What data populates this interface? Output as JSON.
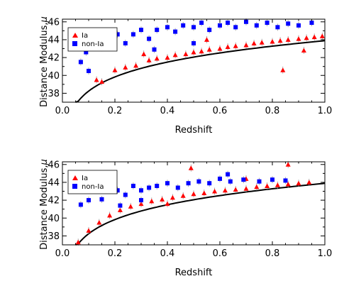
{
  "chart_data": [
    {
      "type": "scatter",
      "xlabel": "Redshift",
      "ylabel": "Distance Modulus,",
      "ylabel_symbol": "μ",
      "xlim": [
        0.0,
        1.0
      ],
      "ylim": [
        37,
        46.3
      ],
      "xticks": [
        "0.0",
        "0.2",
        "0.4",
        "0.6",
        "0.8",
        "1.0"
      ],
      "yticks": [
        "38",
        "40",
        "42",
        "44",
        "46"
      ],
      "legend": {
        "placement": "top-left",
        "entries": [
          "Ia",
          "non-Ia"
        ]
      },
      "series": [
        {
          "name": "Ia",
          "marker": "triangle",
          "color": "#ff0000",
          "points": [
            [
              0.13,
              39.5
            ],
            [
              0.15,
              39.3
            ],
            [
              0.2,
              40.6
            ],
            [
              0.24,
              40.9
            ],
            [
              0.28,
              41.1
            ],
            [
              0.33,
              41.7
            ],
            [
              0.36,
              41.9
            ],
            [
              0.4,
              42.0
            ],
            [
              0.43,
              42.3
            ],
            [
              0.47,
              42.4
            ],
            [
              0.5,
              42.6
            ],
            [
              0.53,
              42.7
            ],
            [
              0.56,
              42.9
            ],
            [
              0.6,
              43.0
            ],
            [
              0.63,
              43.2
            ],
            [
              0.66,
              43.3
            ],
            [
              0.7,
              43.4
            ],
            [
              0.73,
              43.6
            ],
            [
              0.76,
              43.7
            ],
            [
              0.8,
              43.8
            ],
            [
              0.83,
              43.9
            ],
            [
              0.86,
              44.0
            ],
            [
              0.9,
              44.1
            ],
            [
              0.93,
              44.2
            ],
            [
              0.96,
              44.3
            ],
            [
              0.99,
              44.4
            ],
            [
              0.84,
              40.6
            ],
            [
              0.92,
              42.8
            ],
            [
              0.55,
              44.0
            ],
            [
              0.31,
              42.4
            ]
          ]
        },
        {
          "name": "non-Ia",
          "marker": "square",
          "color": "#0000ff",
          "points": [
            [
              0.07,
              41.5
            ],
            [
              0.09,
              42.6
            ],
            [
              0.1,
              40.5
            ],
            [
              0.12,
              43.6
            ],
            [
              0.15,
              43.1
            ],
            [
              0.18,
              44.1
            ],
            [
              0.21,
              44.6
            ],
            [
              0.24,
              43.6
            ],
            [
              0.27,
              44.6
            ],
            [
              0.3,
              45.1
            ],
            [
              0.33,
              44.1
            ],
            [
              0.36,
              45.1
            ],
            [
              0.4,
              45.4
            ],
            [
              0.43,
              44.9
            ],
            [
              0.46,
              45.6
            ],
            [
              0.5,
              45.4
            ],
            [
              0.53,
              45.9
            ],
            [
              0.56,
              45.1
            ],
            [
              0.6,
              45.6
            ],
            [
              0.63,
              45.9
            ],
            [
              0.66,
              45.4
            ],
            [
              0.7,
              46.0
            ],
            [
              0.74,
              45.6
            ],
            [
              0.78,
              45.9
            ],
            [
              0.82,
              45.4
            ],
            [
              0.86,
              45.8
            ],
            [
              0.9,
              45.6
            ],
            [
              0.95,
              45.9
            ],
            [
              0.35,
              42.9
            ],
            [
              0.5,
              43.6
            ]
          ]
        }
      ],
      "model_curve": "distance-redshift relation (solid black line)"
    },
    {
      "type": "scatter",
      "xlabel": "Redshift",
      "ylabel": "Distance Modulus,",
      "ylabel_symbol": "μ",
      "xlim": [
        0.0,
        1.0
      ],
      "ylim": [
        37,
        46.3
      ],
      "xticks": [
        "0.0",
        "0.2",
        "0.4",
        "0.6",
        "0.8",
        "1.0"
      ],
      "yticks": [
        "38",
        "40",
        "42",
        "44",
        "46"
      ],
      "legend": {
        "placement": "top-left",
        "entries": [
          "Ia",
          "non-Ia"
        ]
      },
      "series": [
        {
          "name": "Ia",
          "marker": "triangle",
          "color": "#ff0000",
          "points": [
            [
              0.06,
              37.3
            ],
            [
              0.1,
              38.6
            ],
            [
              0.14,
              39.5
            ],
            [
              0.18,
              40.3
            ],
            [
              0.22,
              40.9
            ],
            [
              0.26,
              41.3
            ],
            [
              0.3,
              41.6
            ],
            [
              0.34,
              41.9
            ],
            [
              0.38,
              42.1
            ],
            [
              0.42,
              42.3
            ],
            [
              0.46,
              42.5
            ],
            [
              0.5,
              42.7
            ],
            [
              0.54,
              42.8
            ],
            [
              0.58,
              43.0
            ],
            [
              0.62,
              43.1
            ],
            [
              0.66,
              43.2
            ],
            [
              0.7,
              43.3
            ],
            [
              0.74,
              43.5
            ],
            [
              0.78,
              43.6
            ],
            [
              0.82,
              43.7
            ],
            [
              0.86,
              43.8
            ],
            [
              0.9,
              43.9
            ],
            [
              0.94,
              44.0
            ],
            [
              0.49,
              45.6
            ],
            [
              0.86,
              46.0
            ],
            [
              0.7,
              44.4
            ],
            [
              0.4,
              41.6
            ]
          ]
        },
        {
          "name": "non-Ia",
          "marker": "square",
          "color": "#0000ff",
          "points": [
            [
              0.07,
              41.5
            ],
            [
              0.1,
              42.0
            ],
            [
              0.12,
              43.2
            ],
            [
              0.15,
              42.1
            ],
            [
              0.18,
              43.3
            ],
            [
              0.21,
              43.1
            ],
            [
              0.24,
              42.6
            ],
            [
              0.27,
              43.6
            ],
            [
              0.3,
              43.1
            ],
            [
              0.33,
              43.4
            ],
            [
              0.36,
              43.6
            ],
            [
              0.4,
              43.9
            ],
            [
              0.44,
              43.4
            ],
            [
              0.48,
              43.9
            ],
            [
              0.52,
              44.1
            ],
            [
              0.56,
              43.9
            ],
            [
              0.6,
              44.4
            ],
            [
              0.64,
              44.1
            ],
            [
              0.69,
              44.3
            ],
            [
              0.63,
              44.9
            ],
            [
              0.75,
              44.1
            ],
            [
              0.8,
              44.3
            ],
            [
              0.85,
              44.2
            ],
            [
              0.22,
              41.4
            ],
            [
              0.3,
              42.0
            ]
          ]
        }
      ],
      "model_curve": "distance-redshift relation (solid black line)"
    }
  ]
}
